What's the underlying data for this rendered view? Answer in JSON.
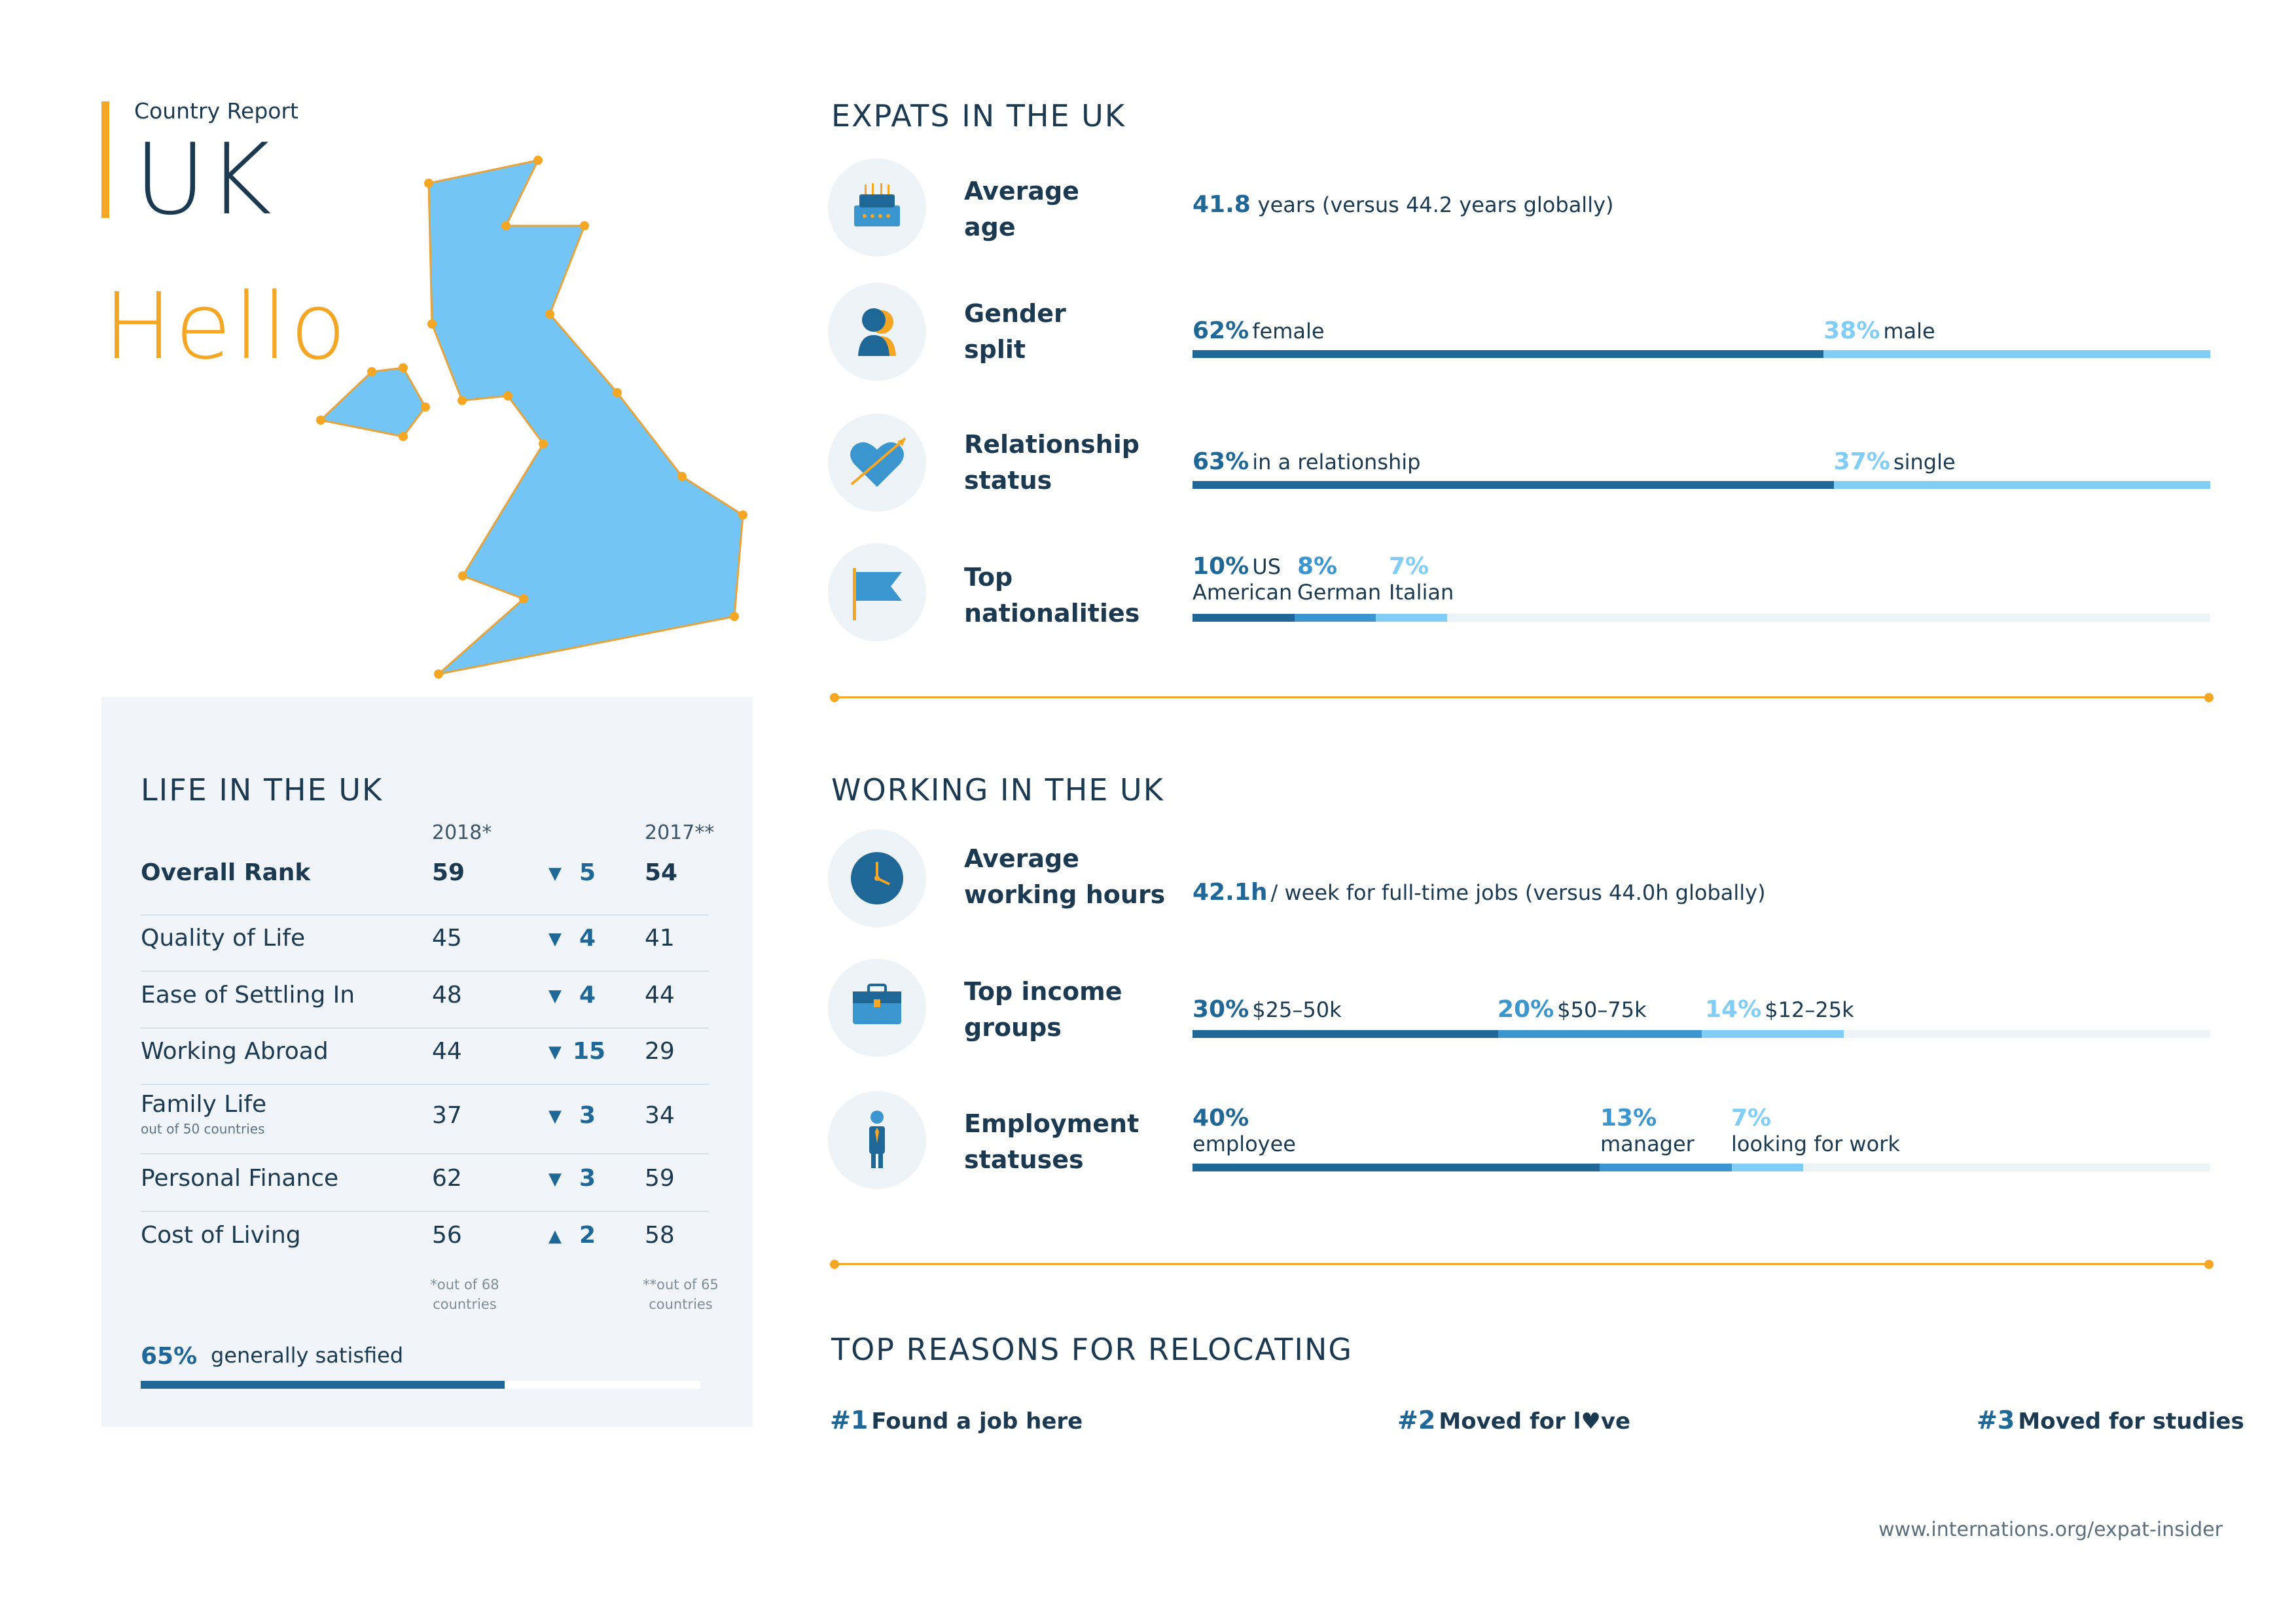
{
  "header": {
    "report_label": "Country Report",
    "country": "UK",
    "greeting": "Hello"
  },
  "colors": {
    "accent_orange": "#f5a623",
    "dark_blue": "#1f6796",
    "mid_blue": "#3b96d0",
    "light_blue": "#80cdf6",
    "map_fill": "#72c5f5",
    "text_navy": "#1b3a52",
    "panel_bg": "#f1f5fa"
  },
  "life": {
    "title": "LIFE IN THE UK",
    "col_2018": "2018*",
    "col_2017": "2017**",
    "rows": [
      {
        "label": "Overall Rank",
        "sub": "",
        "y2018": "59",
        "dir": "down",
        "change": "5",
        "y2017": "54",
        "bold": true
      },
      {
        "label": "Quality of Life",
        "sub": "",
        "y2018": "45",
        "dir": "down",
        "change": "4",
        "y2017": "41"
      },
      {
        "label": "Ease of Settling In",
        "sub": "",
        "y2018": "48",
        "dir": "down",
        "change": "4",
        "y2017": "44"
      },
      {
        "label": "Working Abroad",
        "sub": "",
        "y2018": "44",
        "dir": "down",
        "change": "15",
        "y2017": "29"
      },
      {
        "label": "Family Life",
        "sub": "out of 50 countries",
        "y2018": "37",
        "dir": "down",
        "change": "3",
        "y2017": "34"
      },
      {
        "label": "Personal Finance",
        "sub": "",
        "y2018": "62",
        "dir": "down",
        "change": "3",
        "y2017": "59"
      },
      {
        "label": "Cost of Living",
        "sub": "",
        "y2018": "56",
        "dir": "up",
        "change": "2",
        "y2017": "58"
      }
    ],
    "arrow_down": "▼",
    "arrow_up": "▲",
    "footnote_2018_a": "*out of 68",
    "footnote_2018_b": "countries",
    "footnote_2017_a": "**out of 65",
    "footnote_2017_b": "countries",
    "satisfaction_pct": "65%",
    "satisfaction_value": 65,
    "satisfaction_text": "generally satisfied"
  },
  "expats": {
    "title": "EXPATS IN THE UK",
    "avg_age": {
      "label_1": "Average",
      "label_2": "age",
      "value": "41.8",
      "text": "years (versus 44.2 years globally)",
      "icon": "birthday-cake-icon"
    },
    "gender": {
      "label_1": "Gender",
      "label_2": "split",
      "a_pct": "62%",
      "a_text": "female",
      "a_value": 62,
      "b_pct": "38%",
      "b_text": "male",
      "b_value": 38,
      "icon": "person-silhouette-icon"
    },
    "relationship": {
      "label_1": "Relationship",
      "label_2": "status",
      "a_pct": "63%",
      "a_text": "in a relationship",
      "a_value": 63,
      "b_pct": "37%",
      "b_text": "single",
      "b_value": 37,
      "icon": "heart-arrow-icon"
    },
    "nationalities": {
      "label_1": "Top",
      "label_2": "nationalities",
      "items": [
        {
          "pct": "10%",
          "line1": "US",
          "line2": "American",
          "value": 10
        },
        {
          "pct": "8%",
          "line1": "",
          "line2": "German",
          "value": 8
        },
        {
          "pct": "7%",
          "line1": "",
          "line2": "Italian",
          "value": 7
        }
      ],
      "icon": "flag-icon"
    }
  },
  "working": {
    "title": "WORKING IN THE UK",
    "hours": {
      "label_1": "Average",
      "label_2": "working hours",
      "value": "42.1h",
      "text": "/ week for full-time jobs (versus 44.0h globally)",
      "icon": "clock-icon"
    },
    "income": {
      "label_1": "Top income",
      "label_2": "groups",
      "items": [
        {
          "pct": "30%",
          "text": "$25–50k",
          "value": 30
        },
        {
          "pct": "20%",
          "text": "$50–75k",
          "value": 20
        },
        {
          "pct": "14%",
          "text": "$12–25k",
          "value": 14
        }
      ],
      "icon": "briefcase-icon"
    },
    "employment": {
      "label_1": "Employment",
      "label_2": "statuses",
      "items": [
        {
          "pct": "40%",
          "text": "employee",
          "value": 40
        },
        {
          "pct": "13%",
          "text": "manager",
          "value": 13
        },
        {
          "pct": "7%",
          "text": "looking for work",
          "value": 7
        }
      ],
      "icon": "businessman-icon"
    }
  },
  "reasons": {
    "title": "TOP REASONS FOR RELOCATING",
    "items": [
      {
        "num": "#1",
        "text": "Found a job here"
      },
      {
        "num": "#2",
        "text_a": "Moved for l",
        "heart": "♥",
        "text_b": "ve"
      },
      {
        "num": "#3",
        "text": "Moved for studies"
      }
    ]
  },
  "footer": {
    "url": "www.internations.org/expat-insider"
  }
}
